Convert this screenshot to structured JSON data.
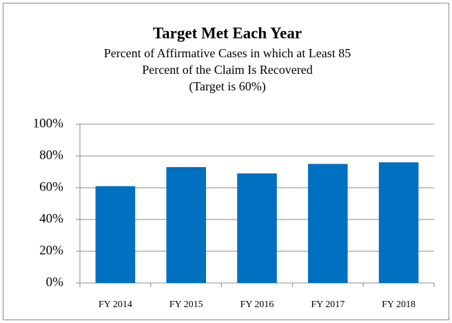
{
  "chart_data": {
    "type": "bar",
    "title": "Target Met Each Year",
    "subtitle": [
      "Percent of Affirmative Cases in which at Least 85",
      "Percent of the Claim Is Recovered",
      "(Target is 60%)"
    ],
    "categories": [
      "FY 2014",
      "FY 2015",
      "FY 2016",
      "FY 2017",
      "FY 2018"
    ],
    "values": [
      61,
      73,
      69,
      75,
      76
    ],
    "color": "#0070c0",
    "ylim": [
      0,
      100
    ],
    "yticks": [
      {
        "value": 0,
        "label": "0%"
      },
      {
        "value": 20,
        "label": "20%"
      },
      {
        "value": 40,
        "label": "40%"
      },
      {
        "value": 60,
        "label": "60%"
      },
      {
        "value": 80,
        "label": "80%"
      },
      {
        "value": 100,
        "label": "100%"
      }
    ],
    "grid": true
  }
}
